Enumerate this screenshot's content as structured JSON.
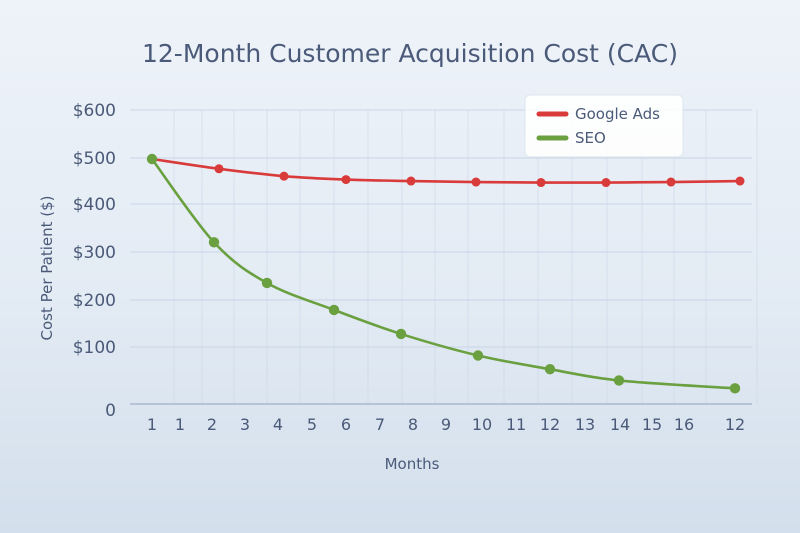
{
  "chart_data": {
    "type": "line",
    "title": "12-Month Customer Acquisition Cost (CAC)",
    "xlabel": "Months",
    "ylabel": "Cost Per Patient ($)",
    "y_ticks": [
      "$600",
      "$500",
      "$400",
      "$300",
      "$200",
      "$100",
      "0"
    ],
    "x_ticks": [
      "1",
      "1",
      "2",
      "3",
      "4",
      "5",
      "6",
      "7",
      "8",
      "9",
      "10",
      "11",
      "12",
      "13",
      "14",
      "15",
      "16",
      "12"
    ],
    "ylim": [
      0,
      600
    ],
    "grid": true,
    "legend_position": "top-right",
    "series": [
      {
        "name": "Google Ads",
        "color": "#d93a3a",
        "x": [
          1,
          2,
          4,
          6,
          8,
          10,
          12,
          14,
          16,
          12
        ],
        "values": [
          500,
          480,
          465,
          458,
          455,
          453,
          452,
          452,
          453,
          455
        ]
      },
      {
        "name": "SEO",
        "color": "#6aa040",
        "x": [
          1,
          2,
          4,
          6,
          8,
          10,
          12,
          14,
          12
        ],
        "values": [
          500,
          330,
          247,
          192,
          143,
          99,
          71,
          48,
          32
        ]
      }
    ]
  }
}
